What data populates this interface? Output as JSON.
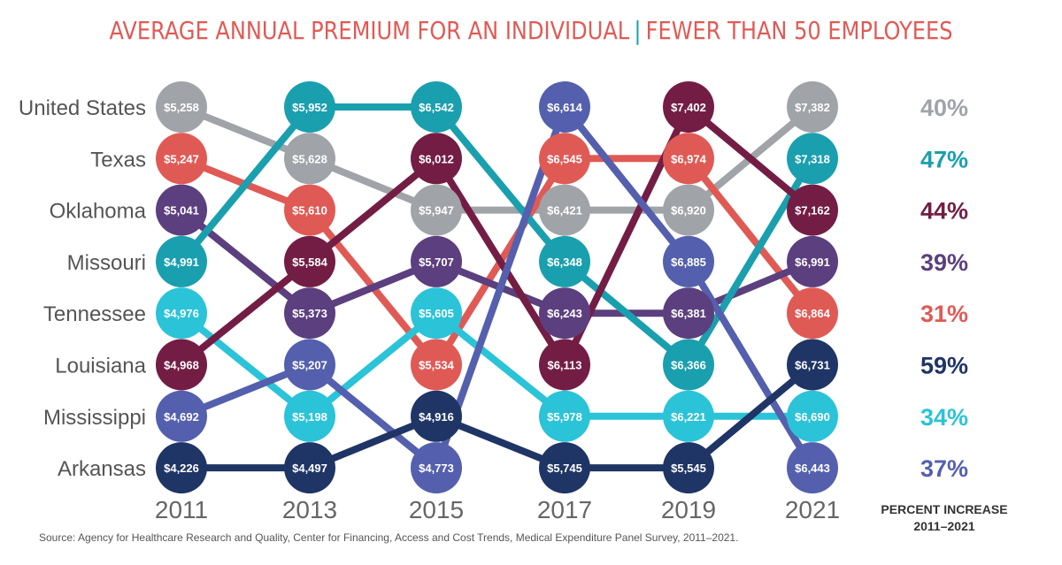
{
  "title": {
    "part1": "AVERAGE ANNUAL PREMIUM FOR AN INDIVIDUAL",
    "separator": "|",
    "part2": "FEWER THAN 50 EMPLOYEES"
  },
  "source": "Source: Agency for Healthcare Research and Quality, Center for Financing, Access and Cost Trends, Medical Expenditure Panel Survey, 2011–2021.",
  "chart_data": {
    "type": "bump",
    "title": "AVERAGE ANNUAL PREMIUM FOR AN INDIVIDUAL | FEWER THAN 50 EMPLOYEES",
    "x": [
      "2011",
      "2013",
      "2015",
      "2017",
      "2019",
      "2021"
    ],
    "rank_labels": [
      "United States",
      "Texas",
      "Oklahoma",
      "Missouri",
      "Tennessee",
      "Louisiana",
      "Mississippi",
      "Arkansas"
    ],
    "percent_header": [
      "PERCENT INCREASE",
      "2011–2021"
    ],
    "series": [
      {
        "name": "United States",
        "color": "#a0a3a8",
        "values": [
          5258,
          5628,
          5947,
          6421,
          6920,
          7382
        ],
        "labels": [
          "$5,258",
          "$5,628",
          "$5,947",
          "$6,421",
          "$6,920",
          "$7,382"
        ],
        "ranks": [
          1,
          2,
          3,
          3,
          3,
          1
        ],
        "pct": "40%"
      },
      {
        "name": "Texas",
        "color": "#e05a55",
        "values": [
          5247,
          5610,
          5534,
          6545,
          6974,
          6864
        ],
        "labels": [
          "$5,247",
          "$5,610",
          "$5,534",
          "$6,545",
          "$6,974",
          "$6,864"
        ],
        "ranks": [
          2,
          3,
          6,
          2,
          2,
          5
        ],
        "pct": "31%"
      },
      {
        "name": "Oklahoma",
        "color": "#5c3f7e",
        "values": [
          5041,
          5373,
          5707,
          6243,
          6381,
          6991
        ],
        "labels": [
          "$5,041",
          "$5,373",
          "$5,707",
          "$6,243",
          "$6,381",
          "$6,991"
        ],
        "ranks": [
          3,
          5,
          4,
          5,
          5,
          4
        ],
        "pct": "39%"
      },
      {
        "name": "Missouri",
        "color": "#1a9fae",
        "values": [
          4991,
          5952,
          6542,
          6348,
          6366,
          7318
        ],
        "labels": [
          "$4,991",
          "$5,952",
          "$6,542",
          "$6,348",
          "$6,366",
          "$7,318"
        ],
        "ranks": [
          4,
          1,
          1,
          4,
          6,
          2
        ],
        "pct": "47%"
      },
      {
        "name": "Tennessee",
        "color": "#2bc3d8",
        "values": [
          4976,
          5198,
          5605,
          5978,
          6221,
          6690
        ],
        "labels": [
          "$4,976",
          "$5,198",
          "$5,605",
          "$5,978",
          "$6,221",
          "$6,690"
        ],
        "ranks": [
          5,
          7,
          5,
          7,
          7,
          7
        ],
        "pct": "34%"
      },
      {
        "name": "Louisiana",
        "color": "#731d45",
        "values": [
          4968,
          5584,
          6012,
          6113,
          7402,
          7162
        ],
        "labels": [
          "$4,968",
          "$5,584",
          "$6,012",
          "$6,113",
          "$7,402",
          "$7,162"
        ],
        "ranks": [
          6,
          4,
          2,
          6,
          1,
          3
        ],
        "pct": "44%"
      },
      {
        "name": "Mississippi",
        "color": "#5460ad",
        "values": [
          4692,
          5207,
          4773,
          6614,
          6885,
          6443
        ],
        "labels": [
          "$4,692",
          "$5,207",
          "$4,773",
          "$6,614",
          "$6,885",
          "$6,443"
        ],
        "ranks": [
          7,
          6,
          8,
          1,
          4,
          8
        ],
        "pct": "37%"
      },
      {
        "name": "Arkansas",
        "color": "#1f3566",
        "values": [
          4226,
          4497,
          4916,
          5745,
          5545,
          6731
        ],
        "labels": [
          "$4,226",
          "$4,497",
          "$4,916",
          "$5,745",
          "$5,545",
          "$6,731"
        ],
        "ranks": [
          8,
          8,
          7,
          8,
          8,
          6
        ],
        "pct": "59%"
      }
    ],
    "percent_column": [
      {
        "value": "40%",
        "color": "#a0a3a8"
      },
      {
        "value": "47%",
        "color": "#1a9fae"
      },
      {
        "value": "44%",
        "color": "#731d45"
      },
      {
        "value": "39%",
        "color": "#5c3f7e"
      },
      {
        "value": "31%",
        "color": "#e05a55"
      },
      {
        "value": "59%",
        "color": "#1f3566"
      },
      {
        "value": "34%",
        "color": "#2bc3d8"
      },
      {
        "value": "37%",
        "color": "#5460ad"
      }
    ]
  }
}
